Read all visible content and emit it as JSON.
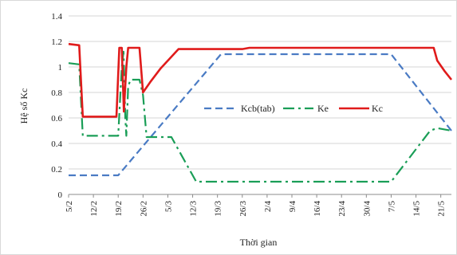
{
  "chart_data": {
    "type": "line",
    "xlabel": "Thời gian",
    "ylabel": "Hệ số Kc",
    "ylim": [
      0,
      1.4
    ],
    "yticks": [
      0,
      0.2,
      0.4,
      0.6,
      0.8,
      1,
      1.2,
      1.4
    ],
    "yticks_labels": [
      "0",
      "0.2",
      "0.4",
      "0.6",
      "0.8",
      "1",
      "1.2",
      "1.4"
    ],
    "x_categories": [
      "5/2",
      "12/2",
      "19/2",
      "26/2",
      "5/3",
      "12/3",
      "19/3",
      "26/3",
      "2/4",
      "9/4",
      "16/4",
      "23/4",
      "30/4",
      "7/5",
      "14/5",
      "21/5"
    ],
    "x_range_days": [
      0,
      108
    ],
    "grid": true,
    "legend_position": "center",
    "series": [
      {
        "name": "Kcb(tab)",
        "color": "#4a7bc4",
        "dash": "dashed",
        "points": [
          [
            0,
            0.15
          ],
          [
            14,
            0.15
          ],
          [
            43,
            1.1
          ],
          [
            91,
            1.1
          ],
          [
            108,
            0.5
          ]
        ]
      },
      {
        "name": "Ke",
        "color": "#1a9e57",
        "dash": "dashdot",
        "points": [
          [
            0,
            1.03
          ],
          [
            3,
            1.02
          ],
          [
            4,
            0.46
          ],
          [
            14,
            0.46
          ],
          [
            15,
            1.0
          ],
          [
            15.5,
            1.12
          ],
          [
            16,
            0.6
          ],
          [
            16.3,
            0.46
          ],
          [
            16.8,
            0.85
          ],
          [
            17.5,
            0.9
          ],
          [
            20,
            0.9
          ],
          [
            21,
            0.78
          ],
          [
            22,
            0.45
          ],
          [
            29,
            0.45
          ],
          [
            36,
            0.1
          ],
          [
            91,
            0.1
          ],
          [
            102,
            0.5
          ],
          [
            104,
            0.52
          ],
          [
            108,
            0.5
          ]
        ]
      },
      {
        "name": "Kc",
        "color": "#e01b1b",
        "dash": "solid",
        "points": [
          [
            0,
            1.18
          ],
          [
            3,
            1.17
          ],
          [
            4,
            0.61
          ],
          [
            13.5,
            0.61
          ],
          [
            14.3,
            1.15
          ],
          [
            15,
            1.15
          ],
          [
            15.6,
            0.65
          ],
          [
            16.3,
            1.0
          ],
          [
            16.8,
            1.15
          ],
          [
            20,
            1.15
          ],
          [
            21,
            0.8
          ],
          [
            23,
            0.88
          ],
          [
            26,
            0.99
          ],
          [
            31,
            1.14
          ],
          [
            49,
            1.14
          ],
          [
            51,
            1.15
          ],
          [
            103,
            1.15
          ],
          [
            104,
            1.05
          ],
          [
            106,
            0.97
          ],
          [
            108,
            0.9
          ]
        ]
      }
    ]
  }
}
